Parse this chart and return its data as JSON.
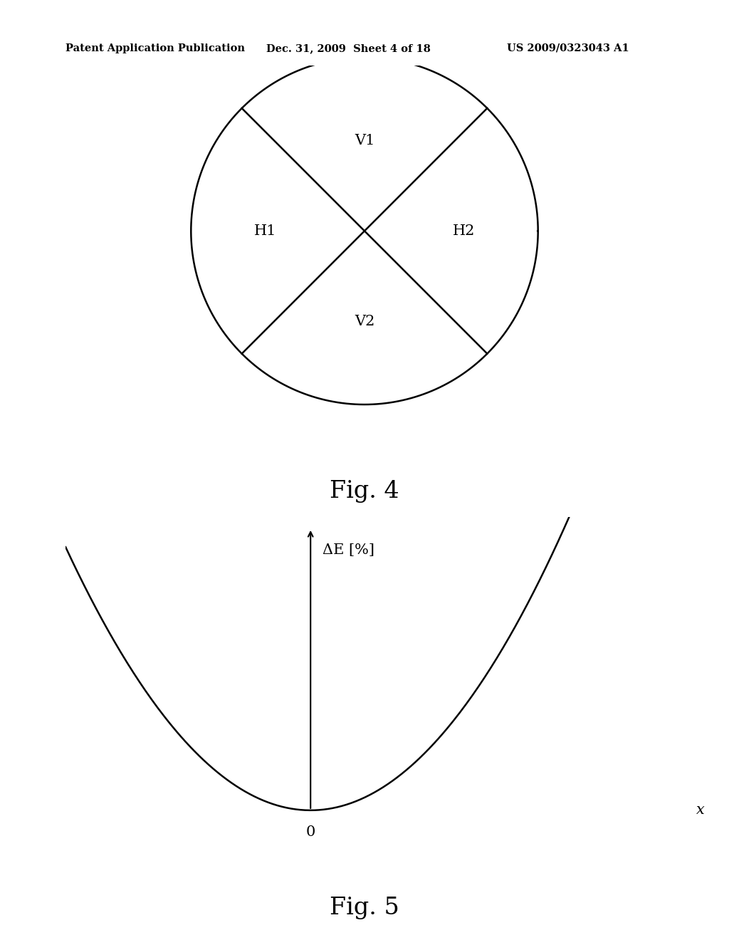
{
  "bg_color": "#ffffff",
  "text_color": "#000000",
  "header_left": "Patent Application Publication",
  "header_center": "Dec. 31, 2009  Sheet 4 of 18",
  "header_right": "US 2009/0323043 A1",
  "fig4_label": "Fig. 4",
  "fig5_label": "Fig. 5",
  "ylabel_text": "ΔE [%]",
  "xlabel_text": "x",
  "origin_label": "0",
  "line_color": "#000000",
  "line_width": 1.8,
  "axis_linewidth": 1.5,
  "font_size_header": 10.5,
  "font_size_figcaption": 24,
  "font_size_axis_label": 15,
  "font_size_circle_label": 15
}
